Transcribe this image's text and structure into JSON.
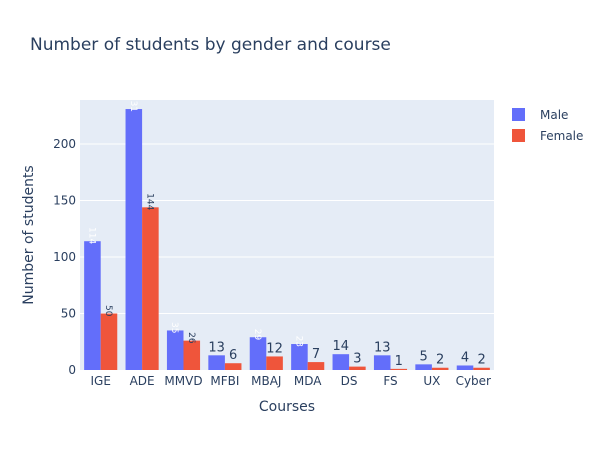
{
  "chart_data": {
    "type": "bar",
    "title": "Number of students by gender and course",
    "xlabel": "Courses",
    "ylabel": "Number of students",
    "ylim": [
      0,
      239
    ],
    "yticks": [
      0,
      50,
      100,
      150,
      200
    ],
    "categories": [
      "IGE",
      "ADE",
      "MMVD",
      "MFBI",
      "MBAJ",
      "MDA",
      "DS",
      "FS",
      "UX",
      "Cyber"
    ],
    "series": [
      {
        "name": "Male",
        "color": "#636efa",
        "values": [
          114,
          231,
          35,
          13,
          29,
          23,
          14,
          13,
          5,
          4
        ]
      },
      {
        "name": "Female",
        "color": "#ef553b",
        "values": [
          50,
          144,
          26,
          6,
          12,
          7,
          3,
          1,
          2,
          2
        ]
      }
    ],
    "legend_position": "top-right",
    "grid": true
  }
}
